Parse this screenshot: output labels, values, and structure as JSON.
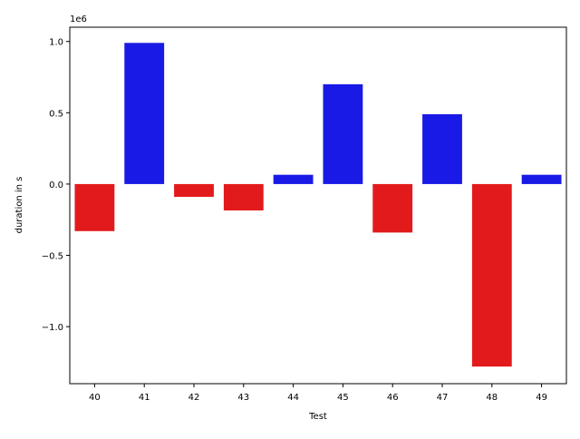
{
  "chart_data": {
    "type": "bar",
    "xlabel": "Test",
    "ylabel": "duration in s",
    "offset_text": "1e6",
    "categories": [
      "40",
      "41",
      "42",
      "43",
      "44",
      "45",
      "46",
      "47",
      "48",
      "49"
    ],
    "values": [
      -330000,
      990000,
      -90000,
      -185000,
      65000,
      700000,
      -340000,
      490000,
      -1280000,
      65000
    ],
    "bar_colors": [
      "#e31a1c",
      "#1a1ae6",
      "#e31a1c",
      "#e31a1c",
      "#1a1ae6",
      "#1a1ae6",
      "#e31a1c",
      "#1a1ae6",
      "#e31a1c",
      "#1a1ae6"
    ],
    "ylim": [
      -1400000,
      1100000
    ],
    "yticks": [
      -1000000,
      -500000,
      0,
      500000,
      1000000
    ],
    "ytick_labels": [
      "−1.0",
      "−0.5",
      "0.0",
      "0.5",
      "1.0"
    ],
    "grid": false,
    "legend": "none"
  }
}
